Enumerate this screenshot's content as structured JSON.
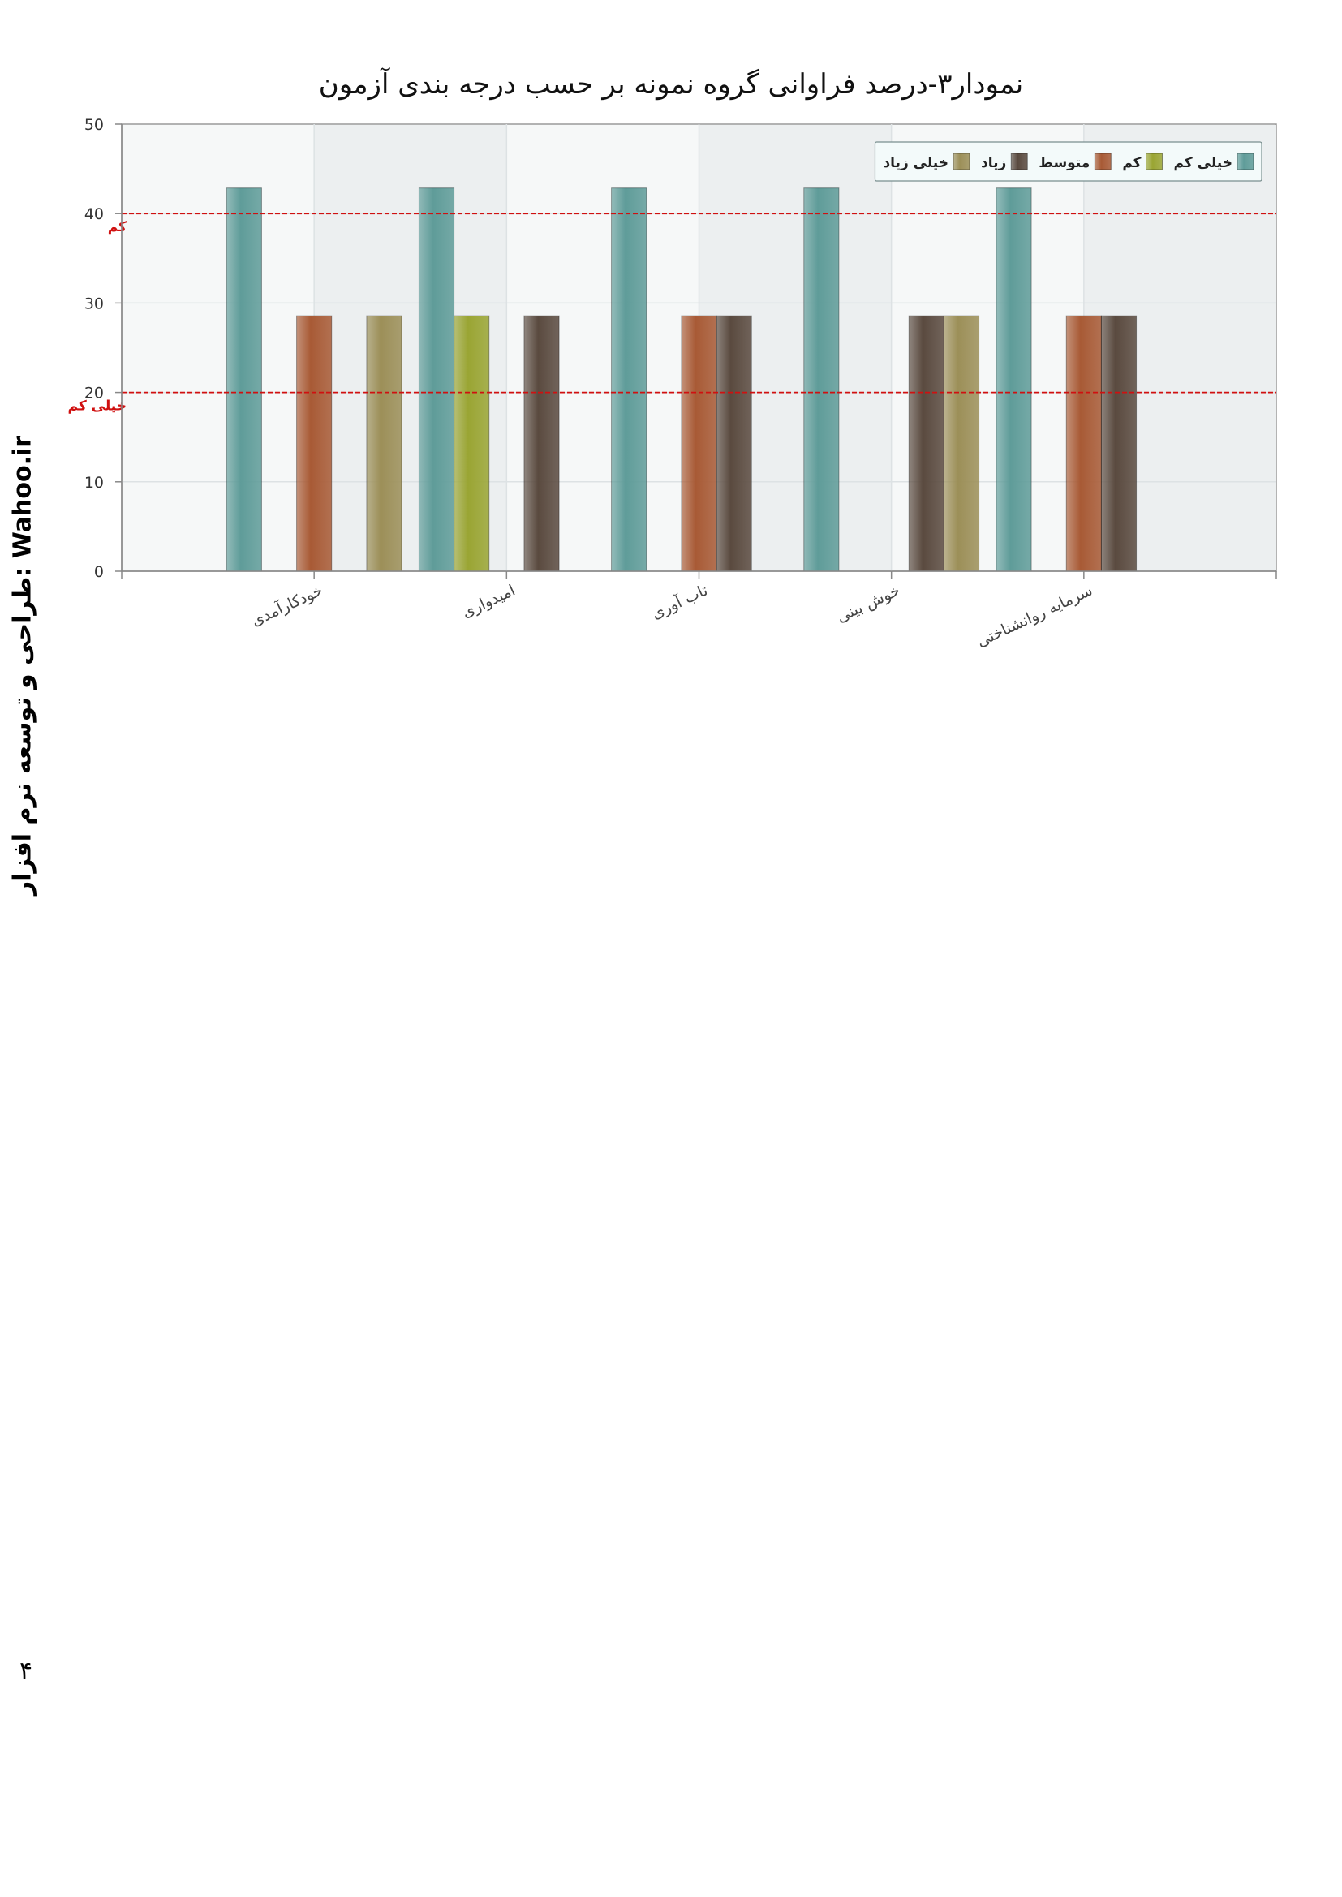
{
  "chart_data": {
    "type": "bar",
    "title": "نمودار۳-درصد فراوانی گروه نمونه بر حسب درجه بندی آزمون",
    "xlabel": "",
    "ylabel": "",
    "ylim": [
      0,
      50
    ],
    "yticks": [
      0,
      10,
      20,
      30,
      40,
      50
    ],
    "grid": true,
    "legend_position": "top-right",
    "categories": [
      "خودکارآمدی",
      "امیدواری",
      "تاب آوری",
      "خوش بینی",
      "سرمایه روانشناختی"
    ],
    "series": [
      {
        "name": "خیلی کم",
        "color": "#5f9c99",
        "values": [
          42.86,
          42.86,
          42.86,
          42.86,
          42.86
        ]
      },
      {
        "name": "کم",
        "color": "#9aa533",
        "values": [
          0,
          28.57,
          0,
          0,
          0
        ]
      },
      {
        "name": "متوسط",
        "color": "#a85a35",
        "values": [
          28.57,
          0,
          28.57,
          0,
          28.57
        ]
      },
      {
        "name": "زیاد",
        "color": "#5a4a3f",
        "values": [
          0,
          28.57,
          28.57,
          28.57,
          28.57
        ]
      },
      {
        "name": "خیلی زیاد",
        "color": "#9c8f58",
        "values": [
          28.57,
          0,
          0,
          28.57,
          0
        ]
      }
    ],
    "reference_lines": [
      {
        "label": "کم",
        "value": 40,
        "color": "#d01010"
      },
      {
        "label": "خیلی کم",
        "value": 20,
        "color": "#d01010"
      }
    ]
  },
  "side_credit": "طراحی و توسعه نرم افزار: Wahoo.ir",
  "page_number": "۴"
}
